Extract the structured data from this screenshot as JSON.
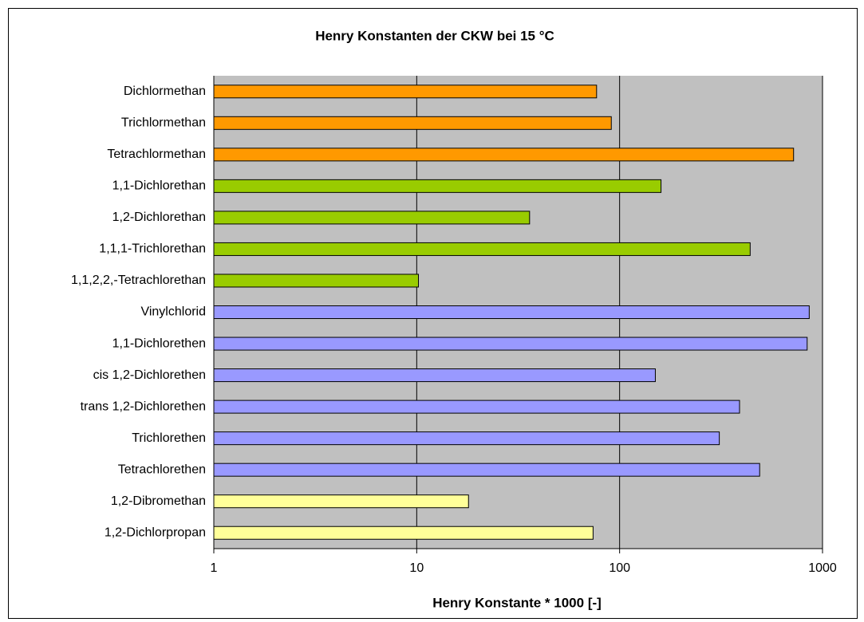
{
  "chart_data": {
    "type": "bar",
    "orientation": "horizontal",
    "title": "Henry Konstanten der CKW bei 15 °C",
    "x_label": "Henry Konstante * 1000 [-]",
    "categories": [
      "Dichlormethan",
      "Trichlormethan",
      "Tetrachlormethan",
      "1,1-Dichlorethan",
      "1,2-Dichlorethan",
      "1,1,1-Trichlorethan",
      "1,1,2,2,-Tetrachlorethan",
      "Vinylchlorid",
      "1,1-Dichlorethen",
      "cis 1,2-Dichlorethen",
      "trans 1,2-Dichlorethen",
      "Trichlorethen",
      "Tetrachlorethen",
      "1,2-Dibromethan",
      "1,2-Dichlorpropan"
    ],
    "values": [
      77,
      91,
      720,
      160,
      36,
      440,
      10.2,
      860,
      840,
      150,
      390,
      310,
      490,
      18,
      74
    ],
    "colors": [
      "#ff9900",
      "#ff9900",
      "#ff9900",
      "#99cc00",
      "#99cc00",
      "#99cc00",
      "#99cc00",
      "#9999ff",
      "#9999ff",
      "#9999ff",
      "#9999ff",
      "#9999ff",
      "#9999ff",
      "#ffff99",
      "#ffff99"
    ],
    "xscale": "log",
    "xlim": [
      1,
      1000
    ],
    "xticks": [
      1,
      10,
      100,
      1000
    ],
    "grid": true
  }
}
